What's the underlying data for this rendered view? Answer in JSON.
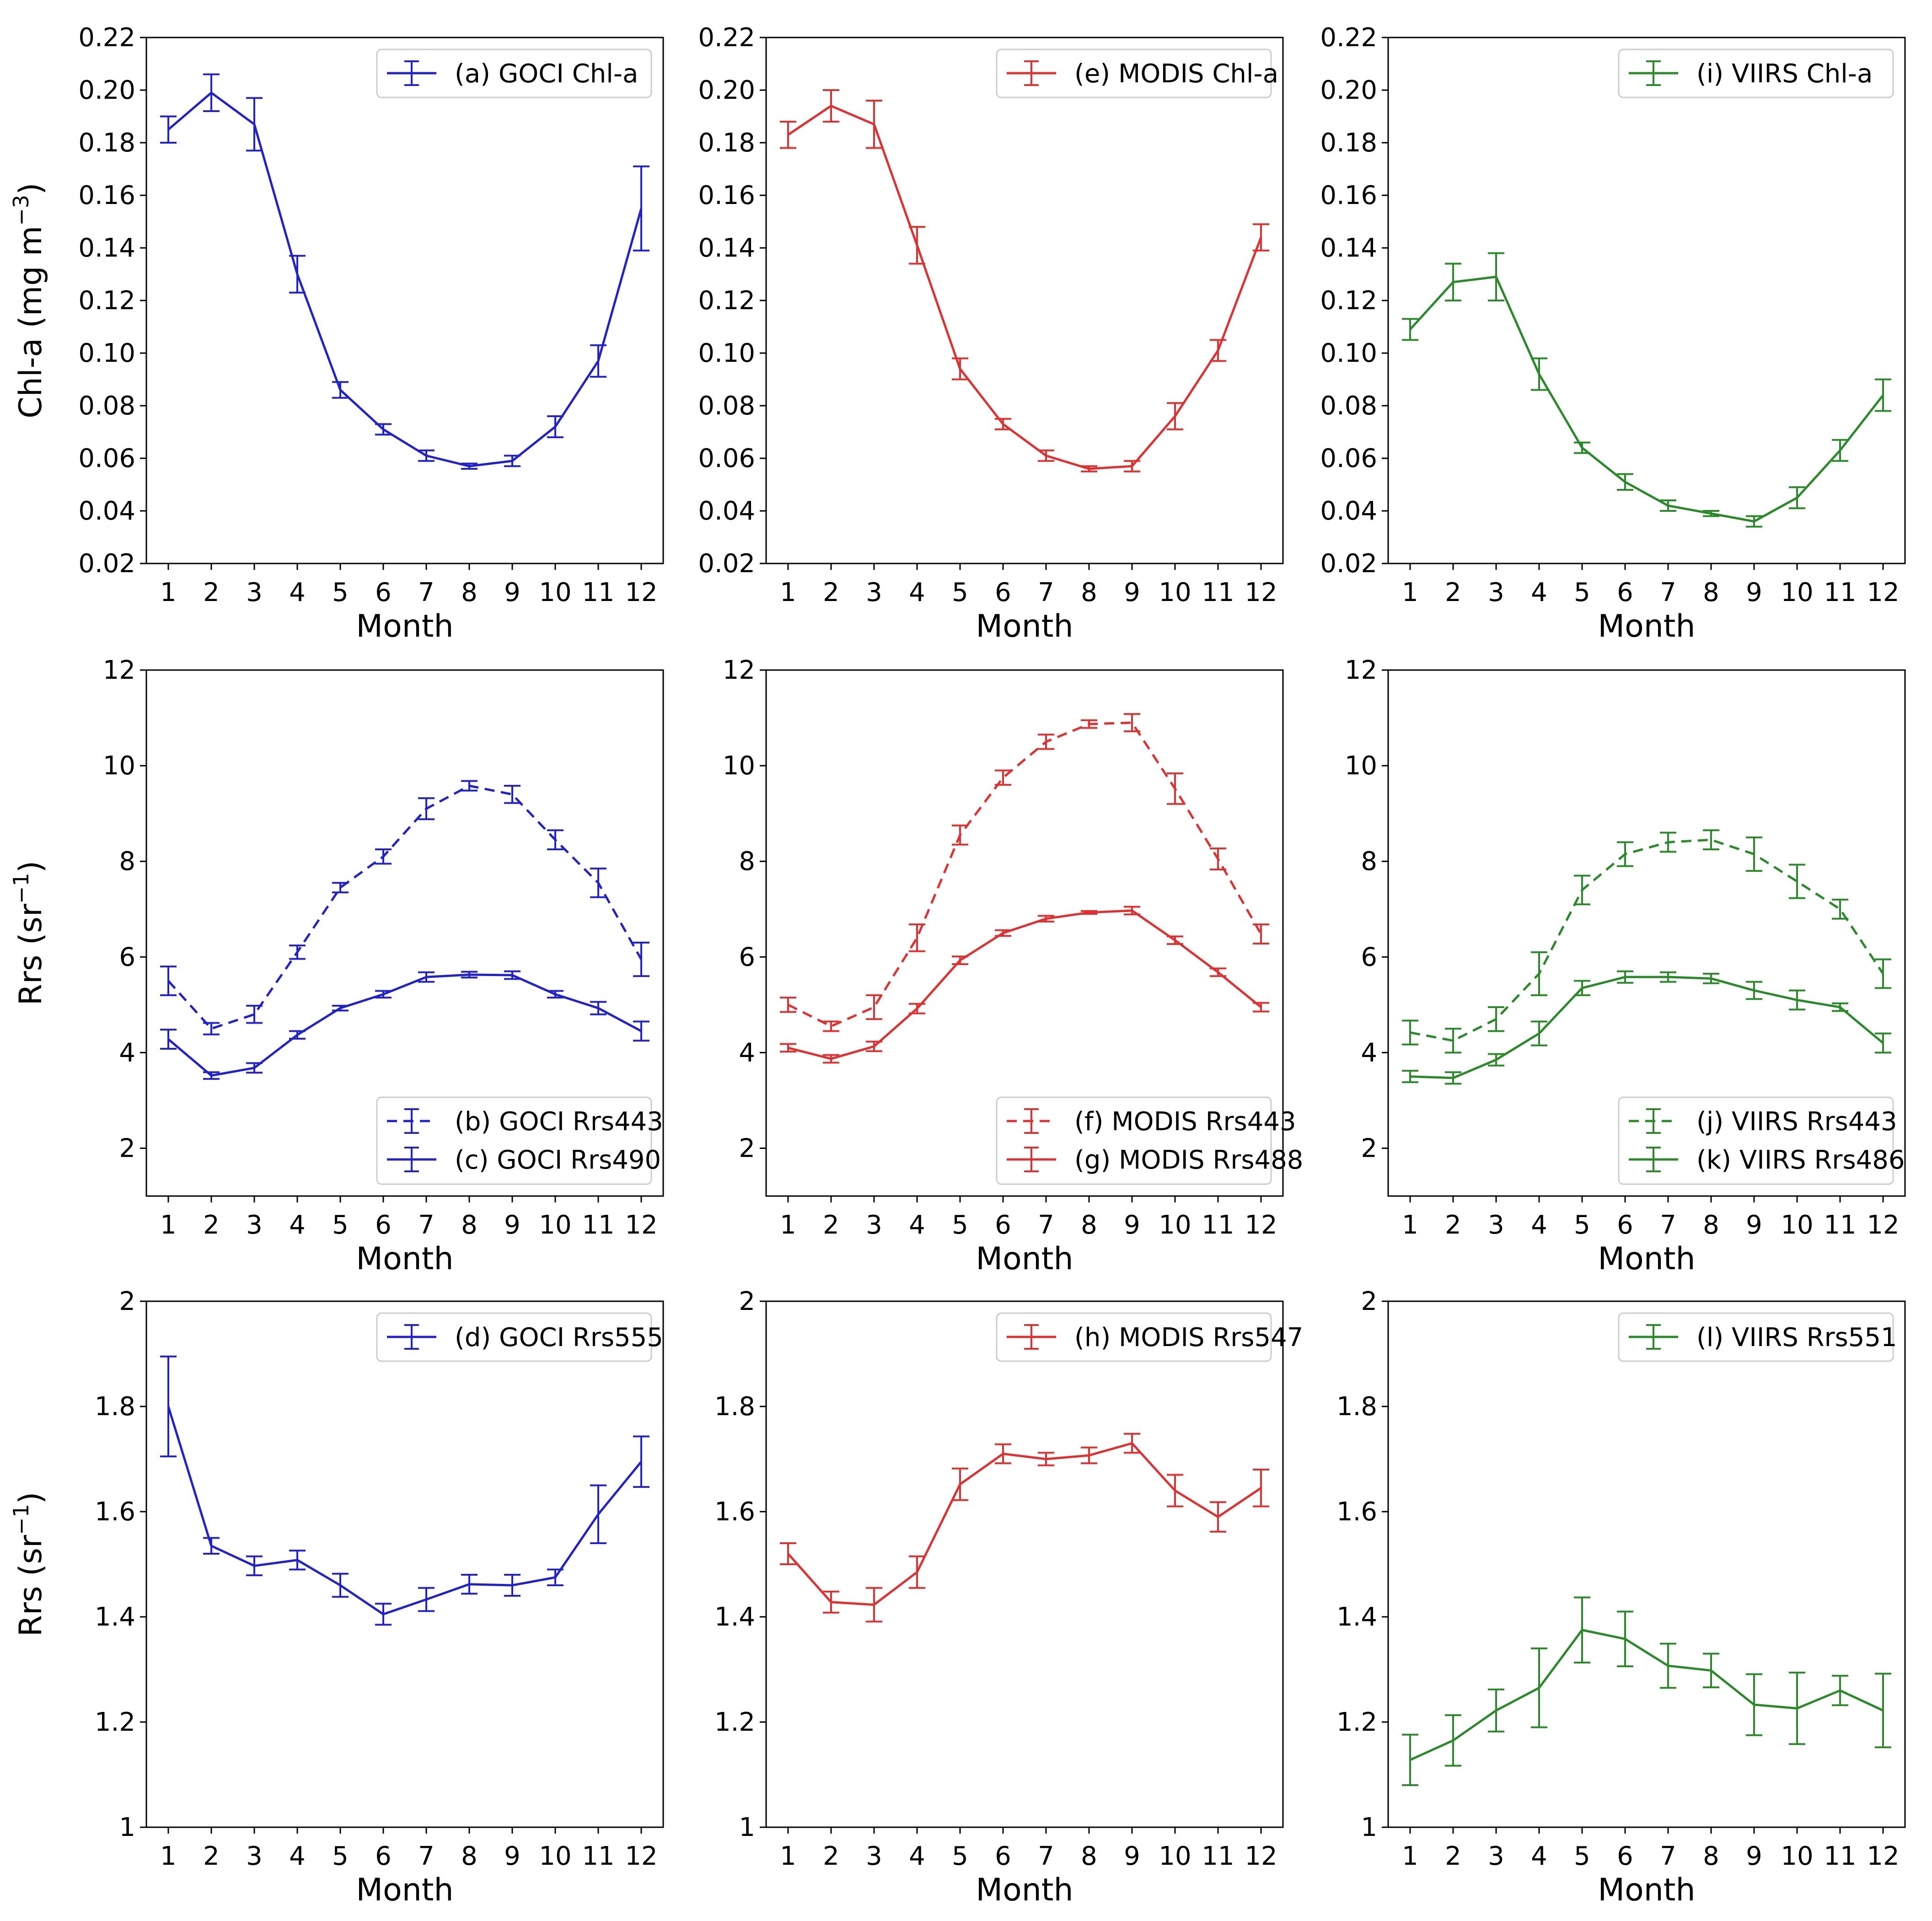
{
  "figure": {
    "xlabel": "Month"
  },
  "colors": {
    "GOCI": "#2222cc",
    "MODIS": "#e03030",
    "VIIRS": "#2a8a2a"
  },
  "chart_data": [
    {
      "type": "line",
      "panel": "chl-goci",
      "sensor": "GOCI",
      "title": "",
      "xlabel": "Month",
      "ylabel": "Chl-a (mg m⁻³)",
      "ylabel_parts": {
        "main": "Chl-a (mg m",
        "sup": "−3",
        "tail": ")"
      },
      "categories": [
        "1",
        "2",
        "3",
        "4",
        "5",
        "6",
        "7",
        "8",
        "9",
        "10",
        "11",
        "12"
      ],
      "ylim": [
        0.02,
        0.22
      ],
      "yticks": [
        "0.02",
        "0.04",
        "0.06",
        "0.08",
        "0.10",
        "0.12",
        "0.14",
        "0.16",
        "0.18",
        "0.20",
        "0.22"
      ],
      "legend_position": "top-right",
      "series": [
        {
          "name": "(a) GOCI Chl-a",
          "style": "solid",
          "values": [
            0.185,
            0.199,
            0.187,
            0.13,
            0.086,
            0.071,
            0.061,
            0.057,
            0.059,
            0.072,
            0.097,
            0.155
          ],
          "errors": [
            0.005,
            0.007,
            0.01,
            0.007,
            0.003,
            0.002,
            0.002,
            0.001,
            0.002,
            0.004,
            0.006,
            0.016
          ]
        }
      ]
    },
    {
      "type": "line",
      "panel": "chl-modis",
      "sensor": "MODIS",
      "title": "",
      "xlabel": "Month",
      "ylabel": "",
      "categories": [
        "1",
        "2",
        "3",
        "4",
        "5",
        "6",
        "7",
        "8",
        "9",
        "10",
        "11",
        "12"
      ],
      "ylim": [
        0.02,
        0.22
      ],
      "yticks": [
        "0.02",
        "0.04",
        "0.06",
        "0.08",
        "0.10",
        "0.12",
        "0.14",
        "0.16",
        "0.18",
        "0.20",
        "0.22"
      ],
      "legend_position": "top-right",
      "series": [
        {
          "name": "(e) MODIS Chl-a",
          "style": "solid",
          "values": [
            0.183,
            0.194,
            0.187,
            0.141,
            0.094,
            0.073,
            0.061,
            0.056,
            0.057,
            0.076,
            0.101,
            0.144
          ],
          "errors": [
            0.005,
            0.006,
            0.009,
            0.007,
            0.004,
            0.002,
            0.002,
            0.001,
            0.002,
            0.005,
            0.004,
            0.005
          ]
        }
      ]
    },
    {
      "type": "line",
      "panel": "chl-viirs",
      "sensor": "VIIRS",
      "title": "",
      "xlabel": "Month",
      "ylabel": "",
      "categories": [
        "1",
        "2",
        "3",
        "4",
        "5",
        "6",
        "7",
        "8",
        "9",
        "10",
        "11",
        "12"
      ],
      "ylim": [
        0.02,
        0.22
      ],
      "yticks": [
        "0.02",
        "0.04",
        "0.06",
        "0.08",
        "0.10",
        "0.12",
        "0.14",
        "0.16",
        "0.18",
        "0.20",
        "0.22"
      ],
      "legend_position": "top-right",
      "series": [
        {
          "name": "(i) VIIRS Chl-a",
          "style": "solid",
          "values": [
            0.109,
            0.127,
            0.129,
            0.092,
            0.064,
            0.051,
            0.042,
            0.039,
            0.036,
            0.045,
            0.063,
            0.084
          ],
          "errors": [
            0.004,
            0.007,
            0.009,
            0.006,
            0.002,
            0.003,
            0.002,
            0.001,
            0.002,
            0.004,
            0.004,
            0.006
          ]
        }
      ]
    },
    {
      "type": "line",
      "panel": "rrs-blue-goci",
      "sensor": "GOCI",
      "title": "",
      "xlabel": "Month",
      "ylabel": "Rrs (sr⁻¹)",
      "ylabel_parts": {
        "main": "Rrs (sr",
        "sup": "−1",
        "tail": ")"
      },
      "categories": [
        "1",
        "2",
        "3",
        "4",
        "5",
        "6",
        "7",
        "8",
        "9",
        "10",
        "11",
        "12"
      ],
      "ylim": [
        1,
        12
      ],
      "yticks": [
        "2",
        "4",
        "6",
        "8",
        "10",
        "12"
      ],
      "legend_position": "bottom-right",
      "series": [
        {
          "name": "(b) GOCI Rrs443",
          "style": "dashed",
          "values": [
            5.5,
            4.5,
            4.8,
            6.1,
            7.45,
            8.1,
            9.1,
            9.58,
            9.4,
            8.45,
            7.55,
            5.95
          ],
          "errors": [
            0.3,
            0.12,
            0.18,
            0.14,
            0.1,
            0.15,
            0.22,
            0.1,
            0.18,
            0.2,
            0.3,
            0.35
          ]
        },
        {
          "name": "(c) GOCI Rrs490",
          "style": "solid",
          "values": [
            4.28,
            3.52,
            3.68,
            4.37,
            4.93,
            5.22,
            5.58,
            5.63,
            5.62,
            5.22,
            4.93,
            4.45
          ],
          "errors": [
            0.2,
            0.07,
            0.1,
            0.08,
            0.05,
            0.07,
            0.1,
            0.06,
            0.08,
            0.07,
            0.13,
            0.2
          ]
        }
      ]
    },
    {
      "type": "line",
      "panel": "rrs-blue-modis",
      "sensor": "MODIS",
      "title": "",
      "xlabel": "Month",
      "ylabel": "",
      "categories": [
        "1",
        "2",
        "3",
        "4",
        "5",
        "6",
        "7",
        "8",
        "9",
        "10",
        "11",
        "12"
      ],
      "ylim": [
        1,
        12
      ],
      "yticks": [
        "2",
        "4",
        "6",
        "8",
        "10",
        "12"
      ],
      "legend_position": "bottom-right",
      "series": [
        {
          "name": "(f) MODIS Rrs443",
          "style": "dashed",
          "values": [
            5.0,
            4.55,
            4.95,
            6.4,
            8.55,
            9.75,
            10.5,
            10.87,
            10.9,
            9.52,
            8.05,
            6.48
          ],
          "errors": [
            0.15,
            0.1,
            0.25,
            0.28,
            0.2,
            0.15,
            0.15,
            0.08,
            0.18,
            0.32,
            0.22,
            0.2
          ]
        },
        {
          "name": "(g) MODIS Rrs488",
          "style": "solid",
          "values": [
            4.1,
            3.87,
            4.13,
            4.92,
            5.93,
            6.5,
            6.8,
            6.93,
            6.97,
            6.35,
            5.68,
            4.95
          ],
          "errors": [
            0.08,
            0.08,
            0.1,
            0.1,
            0.08,
            0.06,
            0.06,
            0.03,
            0.08,
            0.08,
            0.08,
            0.09
          ]
        }
      ]
    },
    {
      "type": "line",
      "panel": "rrs-blue-viirs",
      "sensor": "VIIRS",
      "title": "",
      "xlabel": "Month",
      "ylabel": "",
      "categories": [
        "1",
        "2",
        "3",
        "4",
        "5",
        "6",
        "7",
        "8",
        "9",
        "10",
        "11",
        "12"
      ],
      "ylim": [
        1,
        12
      ],
      "yticks": [
        "2",
        "4",
        "6",
        "8",
        "10",
        "12"
      ],
      "legend_position": "bottom-right",
      "series": [
        {
          "name": "(j) VIIRS Rrs443",
          "style": "dashed",
          "values": [
            4.42,
            4.25,
            4.7,
            5.65,
            7.4,
            8.15,
            8.4,
            8.45,
            8.15,
            7.58,
            7.0,
            5.65
          ],
          "errors": [
            0.25,
            0.25,
            0.25,
            0.45,
            0.3,
            0.25,
            0.2,
            0.2,
            0.35,
            0.35,
            0.2,
            0.3
          ]
        },
        {
          "name": "(k) VIIRS Rrs486",
          "style": "solid",
          "values": [
            3.5,
            3.47,
            3.85,
            4.4,
            5.35,
            5.58,
            5.58,
            5.55,
            5.3,
            5.1,
            4.95,
            4.2
          ],
          "errors": [
            0.12,
            0.12,
            0.12,
            0.25,
            0.15,
            0.12,
            0.1,
            0.1,
            0.18,
            0.2,
            0.08,
            0.2
          ]
        }
      ]
    },
    {
      "type": "line",
      "panel": "rrs-green-goci",
      "sensor": "GOCI",
      "title": "",
      "xlabel": "Month",
      "ylabel": "Rrs (sr⁻¹)",
      "ylabel_parts": {
        "main": "Rrs (sr",
        "sup": "−1",
        "tail": ")"
      },
      "categories": [
        "1",
        "2",
        "3",
        "4",
        "5",
        "6",
        "7",
        "8",
        "9",
        "10",
        "11",
        "12"
      ],
      "ylim": [
        1,
        2
      ],
      "yticks": [
        "1",
        "1.2",
        "1.4",
        "1.6",
        "1.8",
        "2"
      ],
      "legend_position": "top-right",
      "series": [
        {
          "name": "(d) GOCI Rrs555",
          "style": "solid",
          "values": [
            1.8,
            1.535,
            1.497,
            1.508,
            1.46,
            1.405,
            1.433,
            1.462,
            1.46,
            1.475,
            1.595,
            1.695
          ],
          "errors": [
            0.095,
            0.015,
            0.018,
            0.018,
            0.022,
            0.02,
            0.022,
            0.018,
            0.02,
            0.015,
            0.055,
            0.048
          ]
        }
      ]
    },
    {
      "type": "line",
      "panel": "rrs-green-modis",
      "sensor": "MODIS",
      "title": "",
      "xlabel": "Month",
      "ylabel": "",
      "categories": [
        "1",
        "2",
        "3",
        "4",
        "5",
        "6",
        "7",
        "8",
        "9",
        "10",
        "11",
        "12"
      ],
      "ylim": [
        1,
        2
      ],
      "yticks": [
        "1",
        "1.2",
        "1.4",
        "1.6",
        "1.8",
        "2"
      ],
      "legend_position": "top-right",
      "series": [
        {
          "name": "(h) MODIS Rrs547",
          "style": "solid",
          "values": [
            1.52,
            1.428,
            1.423,
            1.485,
            1.652,
            1.71,
            1.7,
            1.707,
            1.73,
            1.64,
            1.59,
            1.645
          ],
          "errors": [
            0.02,
            0.02,
            0.032,
            0.03,
            0.03,
            0.018,
            0.012,
            0.015,
            0.018,
            0.03,
            0.028,
            0.035
          ]
        }
      ]
    },
    {
      "type": "line",
      "panel": "rrs-green-viirs",
      "sensor": "VIIRS",
      "title": "",
      "xlabel": "Month",
      "ylabel": "",
      "categories": [
        "1",
        "2",
        "3",
        "4",
        "5",
        "6",
        "7",
        "8",
        "9",
        "10",
        "11",
        "12"
      ],
      "ylim": [
        1,
        2
      ],
      "yticks": [
        "1",
        "1.2",
        "1.4",
        "1.6",
        "1.8",
        "2"
      ],
      "legend_position": "top-right",
      "series": [
        {
          "name": "(l) VIIRS Rrs551",
          "style": "solid",
          "values": [
            1.128,
            1.165,
            1.222,
            1.265,
            1.375,
            1.358,
            1.307,
            1.298,
            1.233,
            1.226,
            1.26,
            1.222
          ],
          "errors": [
            0.048,
            0.048,
            0.04,
            0.075,
            0.062,
            0.052,
            0.042,
            0.032,
            0.058,
            0.068,
            0.028,
            0.07
          ]
        }
      ]
    }
  ]
}
